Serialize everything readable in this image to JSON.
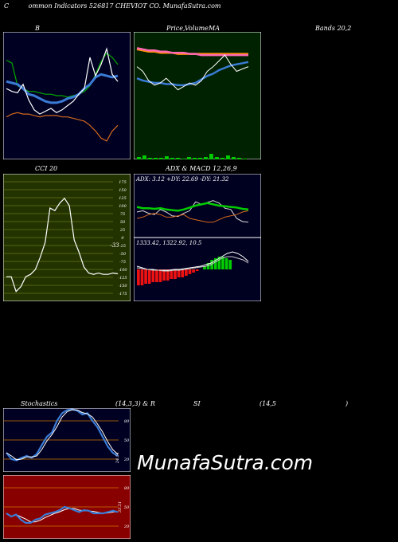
{
  "header": {
    "title_left": "C",
    "title_main": "ommon Indicators 526817 CHEVIOT CO. MunafaSutra.com"
  },
  "labels": {
    "bollinger_b": "B",
    "price_label": "Price,",
    "volume_label": "Volume",
    "ma_label": "MA",
    "bands_label": "Bands 20,2",
    "cci_label": "CCI 20",
    "adx_label": "ADX  & MACD 12,26,9",
    "stoch_label": "Stochastics",
    "stoch_params": "(14,3,3) & R",
    "si_label": "SI",
    "rsi_params": "(14,5",
    "rsi_close": ")",
    "watermark": "MunafaSutra.com"
  },
  "colors": {
    "bollinger_bg": "#000022",
    "price_bg": "#002200",
    "cci_bg": "#223300",
    "adx_bg": "#000020",
    "stoch_bg": "#000022",
    "rsi_bg": "#880000",
    "orange": "#d2691e",
    "blue": "#3a7bd5",
    "green": "#00cc00"
  },
  "chart_data": [
    {
      "type": "line",
      "name": "bollinger",
      "series": [
        {
          "color": "#00aa00",
          "values": [
            90,
            88,
            72,
            70,
            68,
            68,
            67,
            66,
            66,
            65,
            65,
            64,
            65,
            66,
            68,
            72,
            80,
            89,
            95,
            92,
            87
          ]
        },
        {
          "color": "#3a7bd5",
          "values": [
            75,
            74,
            73,
            70,
            66,
            65,
            63,
            61,
            60,
            60,
            61,
            63,
            64,
            66,
            70,
            73,
            78,
            80,
            79,
            78,
            79
          ]
        },
        {
          "color": "#ffffff",
          "values": [
            70,
            68,
            67,
            73,
            62,
            55,
            52,
            54,
            56,
            53,
            55,
            58,
            61,
            66,
            70,
            92,
            79,
            87,
            98,
            80,
            75
          ]
        },
        {
          "color": "#d2691e",
          "values": [
            50,
            52,
            53,
            52,
            52,
            51,
            50,
            51,
            51,
            51,
            50,
            50,
            49,
            48,
            47,
            44,
            40,
            35,
            33,
            40,
            44
          ]
        }
      ]
    },
    {
      "type": "line",
      "name": "price_ma",
      "series": [
        {
          "color": "#ff8c00",
          "values": [
            95,
            94,
            93,
            93,
            92,
            92,
            92,
            91,
            91,
            91,
            91,
            91,
            91,
            91,
            91,
            91,
            91,
            91,
            91,
            91
          ]
        },
        {
          "color": "#ff69b4",
          "values": [
            96,
            95,
            94,
            94,
            93,
            93,
            92,
            92,
            92,
            91,
            91,
            90,
            90,
            90,
            90,
            90,
            90,
            90,
            90,
            90
          ]
        },
        {
          "color": "#3a7bd5",
          "values": [
            70,
            68,
            67,
            66,
            66,
            65,
            65,
            64,
            64,
            65,
            66,
            69,
            72,
            74,
            77,
            79,
            81,
            82,
            83,
            84
          ]
        },
        {
          "color": "#ffffff",
          "values": [
            80,
            76,
            68,
            64,
            66,
            70,
            65,
            60,
            63,
            66,
            64,
            68,
            76,
            80,
            85,
            90,
            82,
            76,
            78,
            80
          ]
        }
      ],
      "volume": [
        3,
        5,
        2,
        2,
        2,
        4,
        2,
        2,
        1,
        3,
        2,
        2,
        3,
        7,
        3,
        2,
        5,
        3,
        2,
        1
      ]
    },
    {
      "type": "line",
      "name": "cci",
      "ticks": [
        175,
        150,
        125,
        100,
        75,
        50,
        25,
        0,
        -25,
        -50,
        -75,
        -100,
        -125,
        -150,
        -175
      ],
      "values": [
        -20,
        -20,
        -80,
        -60,
        -20,
        -10,
        10,
        60,
        120,
        260,
        250,
        280,
        300,
        270,
        130,
        80,
        20,
        -5,
        -10,
        -5,
        -10,
        -10,
        -5,
        -8
      ],
      "last_label": "-33"
    },
    {
      "type": "line",
      "name": "adx",
      "text": "ADX: 3.12  +DY: 22.69 -DY: 21.32"
    },
    {
      "type": "bar",
      "name": "macd",
      "text": "1333.42,  1322.92,  10.5"
    },
    {
      "type": "line",
      "name": "stochastics",
      "ticks": [
        80,
        50,
        20
      ],
      "values": [
        30,
        20,
        18,
        22,
        25,
        22,
        28,
        42,
        55,
        62,
        80,
        92,
        97,
        98,
        96,
        90,
        92,
        80,
        70,
        55,
        40,
        30,
        25
      ],
      "last_label": "24.51"
    },
    {
      "type": "line",
      "name": "rsi",
      "ticks": [
        80,
        50,
        20
      ],
      "values": [
        40,
        35,
        38,
        30,
        25,
        25,
        30,
        32,
        38,
        40,
        42,
        45,
        50,
        48,
        45,
        42,
        45,
        44,
        40,
        40,
        40,
        42,
        44,
        42
      ],
      "last_label": "33.51"
    }
  ]
}
